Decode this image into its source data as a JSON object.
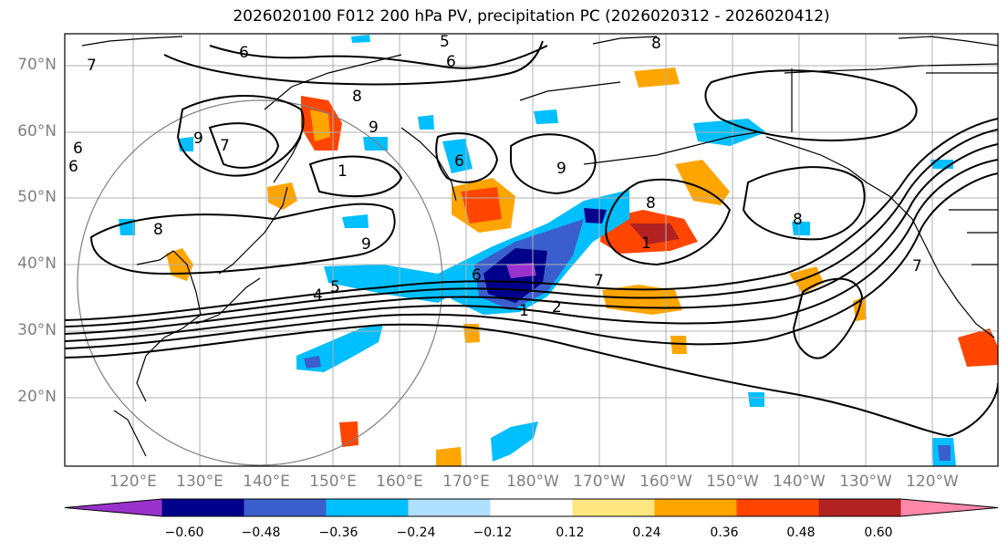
{
  "title": "2026020100 F012 200 hPa PV, precipitation PC (2026020312 - 2026020412)",
  "lat_labels": [
    "70°N",
    "60°N",
    "50°N",
    "40°N",
    "30°N",
    "20°N"
  ],
  "lon_labels": [
    "120°E",
    "130°E",
    "140°E",
    "150°E",
    "160°E",
    "170°E",
    "180°W",
    "170°W",
    "160°W",
    "150°W",
    "140°W",
    "130°W",
    "120°W"
  ],
  "colorbar": {
    "ticks": [
      "−0.60",
      "−0.48",
      "−0.36",
      "−0.24",
      "−0.12",
      "0.12",
      "0.24",
      "0.36",
      "0.48",
      "0.60"
    ],
    "colors": [
      "#9932cc",
      "#00008b",
      "#3a5fcd",
      "#00bfff",
      "#b0e0ff",
      "#ffffff",
      "#ffe680",
      "#ffa500",
      "#ff4500",
      "#b22222",
      "#ff88aa"
    ]
  },
  "contour_labels": [
    "5",
    "6",
    "8",
    "6",
    "8",
    "9",
    "7",
    "9",
    "1",
    "6",
    "9",
    "8",
    "6",
    "8",
    "9",
    "8",
    "7",
    "1",
    "6",
    "7",
    "5",
    "4",
    "2",
    "1",
    "7",
    "6"
  ]
}
